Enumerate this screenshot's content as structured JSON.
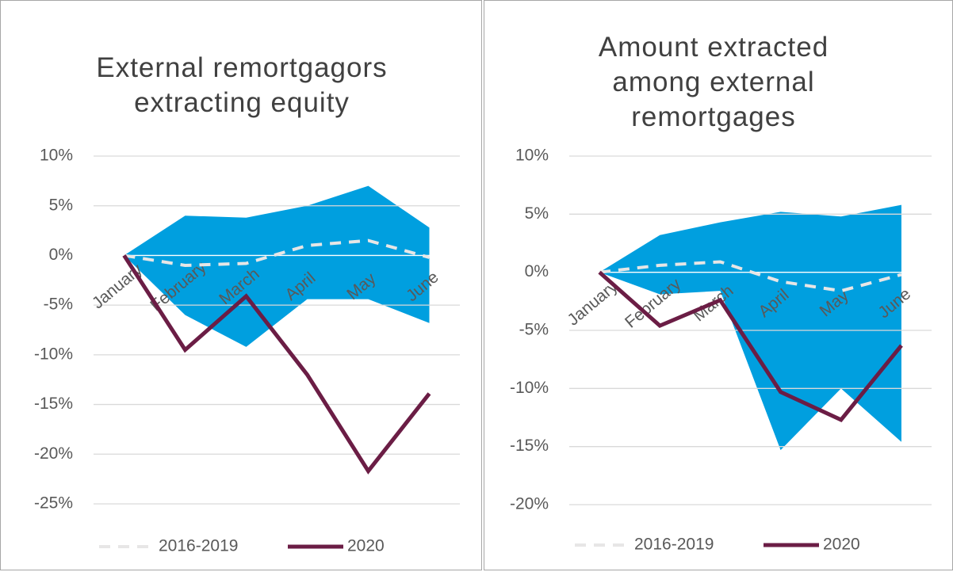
{
  "chart_data": [
    {
      "type": "line",
      "title": "External remortgagors extracting equity",
      "categories": [
        "January",
        "February",
        "March",
        "April",
        "May",
        "June"
      ],
      "range": {
        "color": "#009fdf",
        "upper": [
          0,
          4.0,
          3.8,
          5.0,
          7.0,
          2.8
        ],
        "lower": [
          0,
          -6.0,
          -9.2,
          -4.4,
          -4.4,
          -6.8
        ]
      },
      "series": [
        {
          "name": "2016-2019",
          "color": "#e7e6e6",
          "line_style": "dashed",
          "values": [
            0,
            -1.0,
            -0.8,
            1.0,
            1.5,
            -0.2
          ]
        },
        {
          "name": "2020",
          "color": "#6b1d45",
          "line_style": "solid",
          "values": [
            0,
            -9.5,
            -4.1,
            -12.0,
            -21.7,
            -13.9
          ]
        }
      ],
      "ylim": [
        -25,
        10
      ],
      "yticks": [
        {
          "value": -25,
          "label": "-25%"
        },
        {
          "value": -20,
          "label": "-20%"
        },
        {
          "value": -15,
          "label": "-15%"
        },
        {
          "value": -10,
          "label": "-10%"
        },
        {
          "value": -5,
          "label": "-5%"
        },
        {
          "value": 0,
          "label": "0%"
        },
        {
          "value": 5,
          "label": "5%"
        },
        {
          "value": 10,
          "label": "10%"
        }
      ],
      "grid": true,
      "legend": "bottom"
    },
    {
      "type": "line",
      "title": "Amount extracted among external remortgages",
      "categories": [
        "January",
        "February",
        "March",
        "April",
        "May",
        "June"
      ],
      "range": {
        "color": "#009fdf",
        "upper": [
          0,
          3.2,
          4.3,
          5.2,
          4.8,
          5.8
        ],
        "lower": [
          0,
          -1.9,
          -1.6,
          -15.3,
          -10.0,
          -14.6
        ]
      },
      "series": [
        {
          "name": "2016-2019",
          "color": "#e7e6e6",
          "line_style": "dashed",
          "values": [
            0,
            0.6,
            0.9,
            -0.8,
            -1.6,
            -0.2
          ]
        },
        {
          "name": "2020",
          "color": "#6b1d45",
          "line_style": "solid",
          "values": [
            0,
            -4.6,
            -2.4,
            -10.3,
            -12.7,
            -6.3
          ]
        }
      ],
      "ylim": [
        -20,
        10
      ],
      "yticks": [
        {
          "value": -20,
          "label": "-20%"
        },
        {
          "value": -15,
          "label": "-15%"
        },
        {
          "value": -10,
          "label": "-10%"
        },
        {
          "value": -5,
          "label": "-5%"
        },
        {
          "value": 0,
          "label": "0%"
        },
        {
          "value": 5,
          "label": "5%"
        },
        {
          "value": 10,
          "label": "10%"
        }
      ],
      "grid": true,
      "legend": "bottom"
    }
  ]
}
